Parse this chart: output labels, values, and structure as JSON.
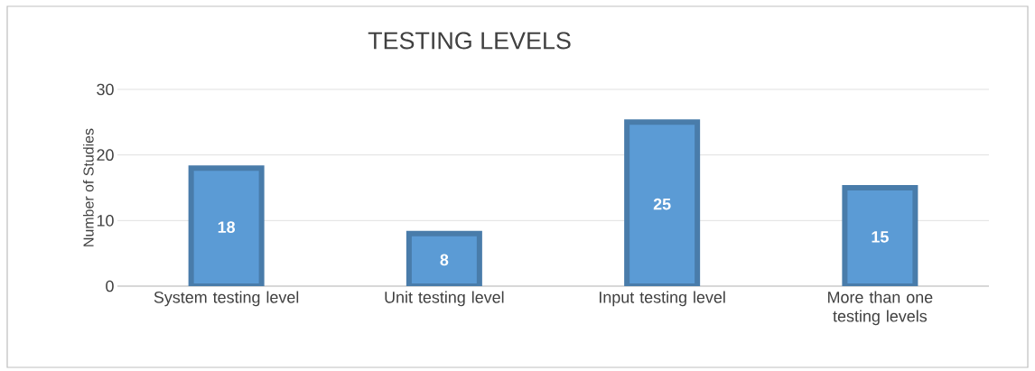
{
  "chart_data": {
    "type": "bar",
    "title": "TESTING LEVELS",
    "ylabel": "Number of Studies",
    "categories": [
      "System testing  level",
      "Unit testing level",
      "Input testing level",
      "More than one testing levels"
    ],
    "values": [
      18,
      8,
      25,
      15
    ],
    "color": "#5b9bd5",
    "ylim": [
      0,
      30
    ],
    "yticks": [
      0,
      10,
      20,
      30
    ],
    "grid": "y",
    "data_labels": true
  }
}
